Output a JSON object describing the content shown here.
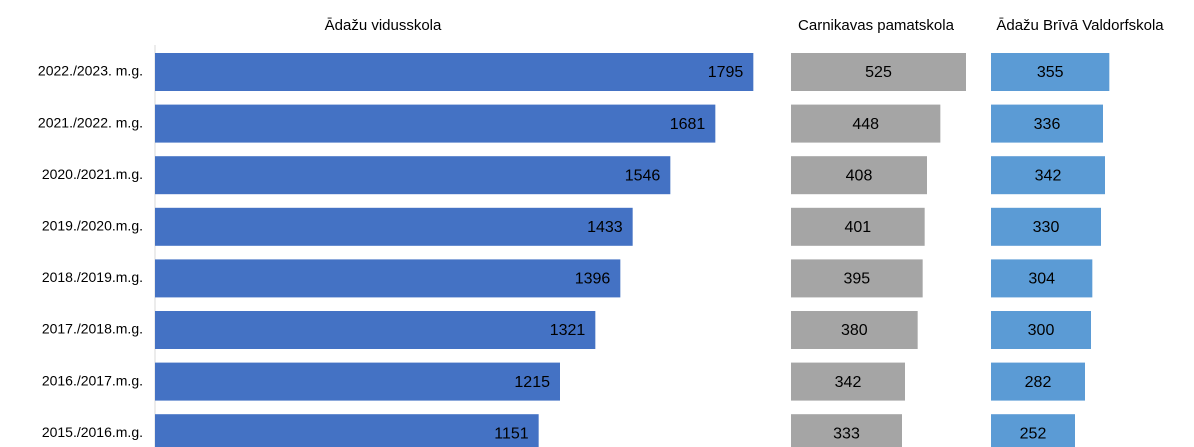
{
  "chart_data": {
    "type": "bar",
    "orientation": "horizontal",
    "categories": [
      "2022./2023. m.g.",
      "2021./2022. m.g.",
      "2020./2021.m.g.",
      "2019./2020.m.g.",
      "2018./2019.m.g.",
      "2017./2018.m.g.",
      "2016./2017.m.g.",
      "2015./2016.m.g."
    ],
    "series": [
      {
        "name": "Ādažu vidusskola",
        "color": "#4472c4",
        "label_color": "#ffffff",
        "values": [
          1795,
          1681,
          1546,
          1433,
          1396,
          1321,
          1215,
          1151
        ]
      },
      {
        "name": "Carnikavas pamatskola",
        "color": "#a5a5a5",
        "label_color": "#404040",
        "values": [
          525,
          448,
          408,
          401,
          395,
          380,
          342,
          333
        ]
      },
      {
        "name": "Ādažu Brīvā Valdorfskola",
        "color": "#5b9bd5",
        "label_color": "#404040",
        "values": [
          355,
          336,
          342,
          330,
          304,
          300,
          282,
          252
        ]
      }
    ]
  }
}
